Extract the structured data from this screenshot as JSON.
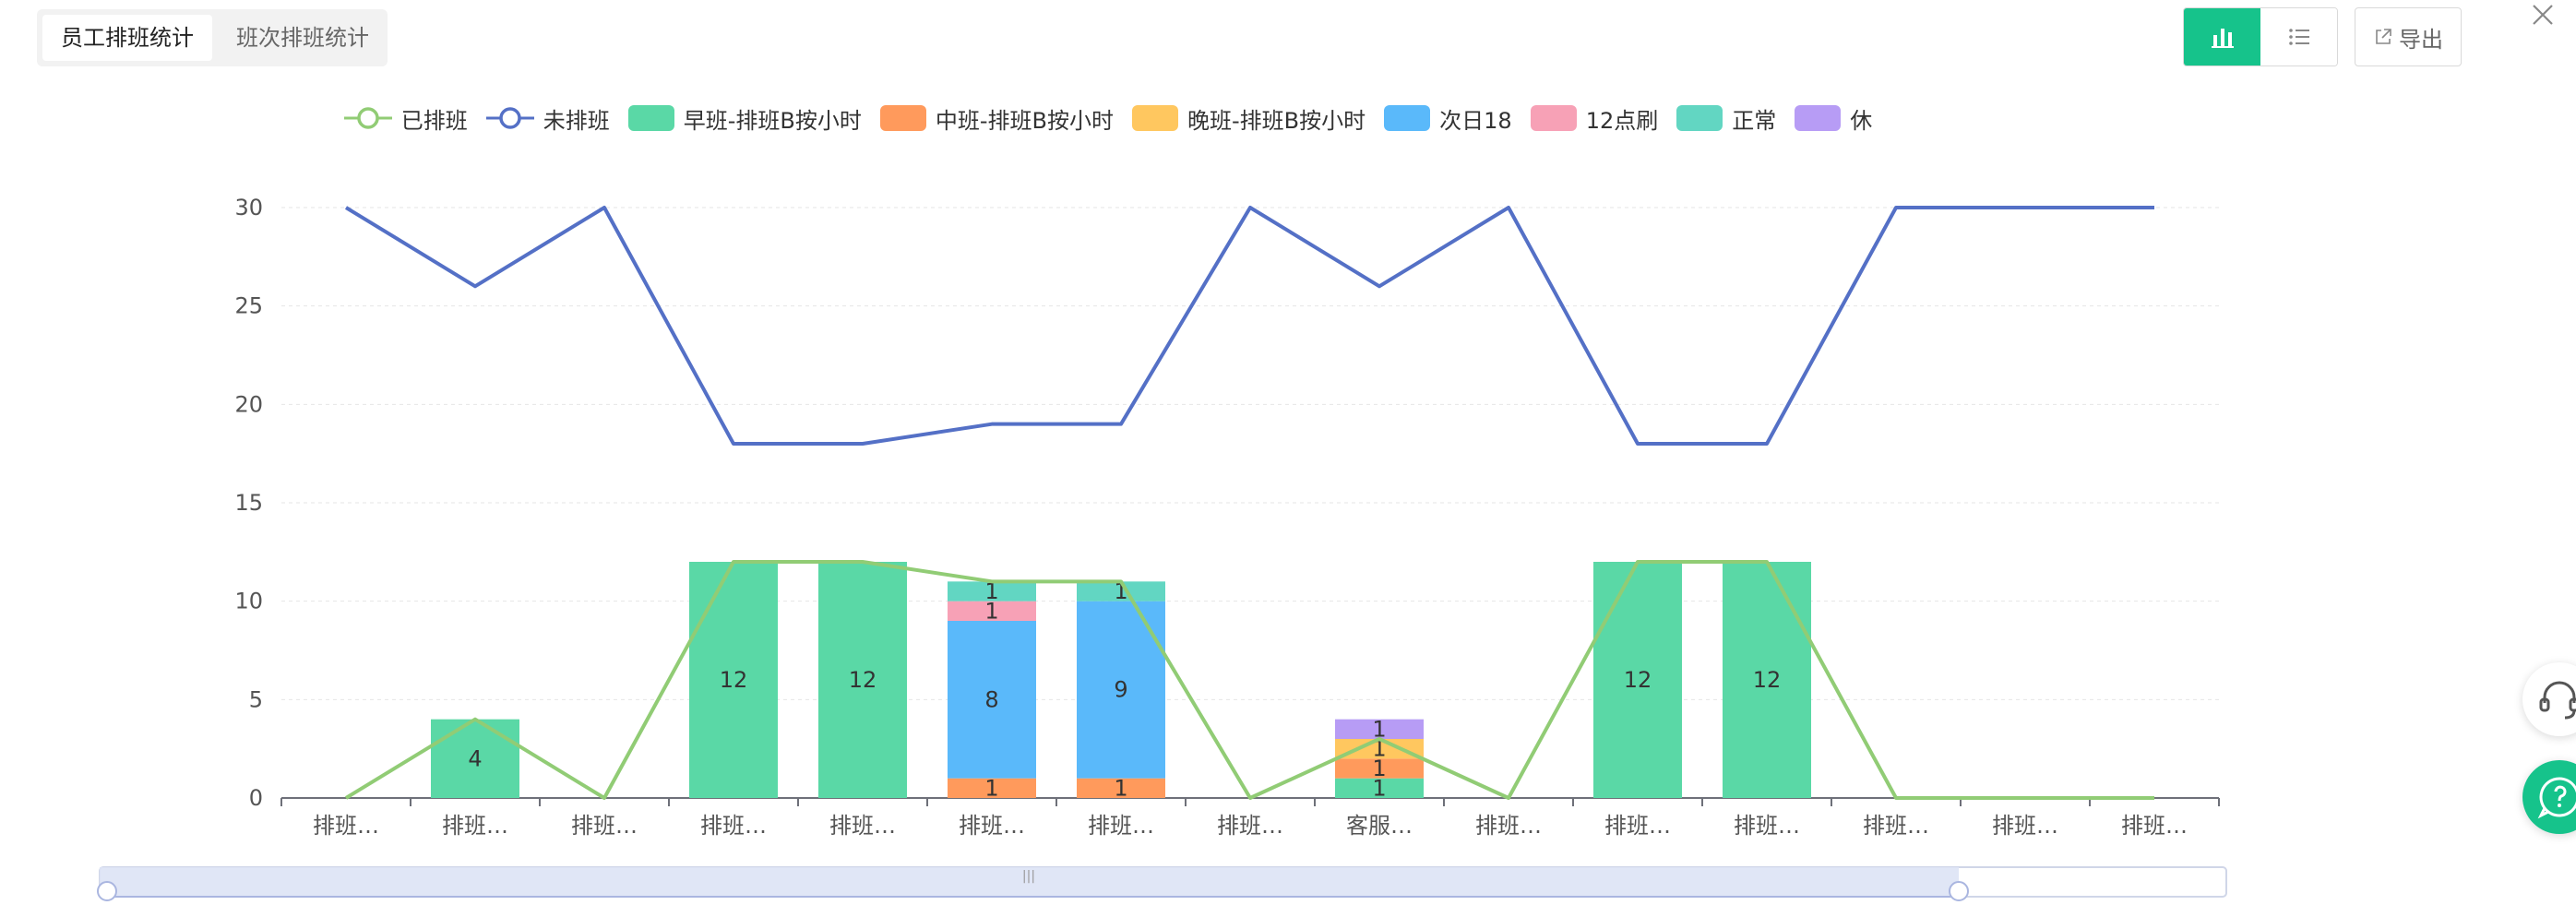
{
  "tabs": [
    {
      "label": "员工排班统计",
      "active": true
    },
    {
      "label": "班次排班统计",
      "active": false
    }
  ],
  "toolbar": {
    "chart_view_icon": "bar-chart-icon",
    "list_view_icon": "list-icon",
    "export_label": "导出",
    "export_icon": "external-link-icon",
    "close_icon": "close-icon",
    "accent": "#16c38b"
  },
  "side_buttons": {
    "support_icon": "headset-icon",
    "chat_icon": "chat-icon"
  },
  "chart_data": {
    "type": "bar",
    "stacked": true,
    "categories": [
      "排班…",
      "排班…",
      "排班…",
      "排班…",
      "排班…",
      "排班…",
      "排班…",
      "排班…",
      "客服…",
      "排班…",
      "排班…",
      "排班…",
      "排班…",
      "排班…",
      "排班…"
    ],
    "ylim": [
      0,
      30
    ],
    "yticks": [
      0,
      5,
      10,
      15,
      20,
      25,
      30
    ],
    "grid": true,
    "legend_position": "top",
    "lines": [
      {
        "name": "已排班",
        "color": "#91cc75",
        "values": [
          0,
          4,
          0,
          12,
          12,
          11,
          11,
          0,
          3,
          0,
          12,
          12,
          0,
          0,
          0
        ]
      },
      {
        "name": "未排班",
        "color": "#5470c6",
        "values": [
          30,
          26,
          30,
          18,
          18,
          19,
          19,
          30,
          26,
          30,
          18,
          18,
          30,
          30,
          30
        ]
      }
    ],
    "series": [
      {
        "name": "早班-排班B按小时",
        "color": "#5ad8a6",
        "values": [
          0,
          4,
          0,
          12,
          12,
          0,
          0,
          0,
          1,
          0,
          12,
          12,
          0,
          0,
          0
        ]
      },
      {
        "name": "中班-排班B按小时",
        "color": "#ff9a5c",
        "values": [
          0,
          0,
          0,
          0,
          0,
          1,
          1,
          0,
          1,
          0,
          0,
          0,
          0,
          0,
          0
        ]
      },
      {
        "name": "晚班-排班B按小时",
        "color": "#ffc75f",
        "values": [
          0,
          0,
          0,
          0,
          0,
          0,
          0,
          0,
          1,
          0,
          0,
          0,
          0,
          0,
          0
        ]
      },
      {
        "name": "次日18",
        "color": "#5ab9fa",
        "values": [
          0,
          0,
          0,
          0,
          0,
          8,
          9,
          0,
          0,
          0,
          0,
          0,
          0,
          0,
          0
        ]
      },
      {
        "name": "12点刷",
        "color": "#f7a1b6",
        "values": [
          0,
          0,
          0,
          0,
          0,
          1,
          0,
          0,
          0,
          0,
          0,
          0,
          0,
          0,
          0
        ]
      },
      {
        "name": "正常",
        "color": "#62d6c2",
        "values": [
          0,
          0,
          0,
          0,
          0,
          1,
          1,
          0,
          0,
          0,
          0,
          0,
          0,
          0,
          0
        ]
      },
      {
        "name": "休",
        "color": "#b79cf5",
        "values": [
          0,
          0,
          0,
          0,
          0,
          0,
          0,
          0,
          1,
          0,
          0,
          0,
          0,
          0,
          0
        ]
      }
    ],
    "has_data_zoom": true,
    "data_zoom_handle": "|||"
  }
}
